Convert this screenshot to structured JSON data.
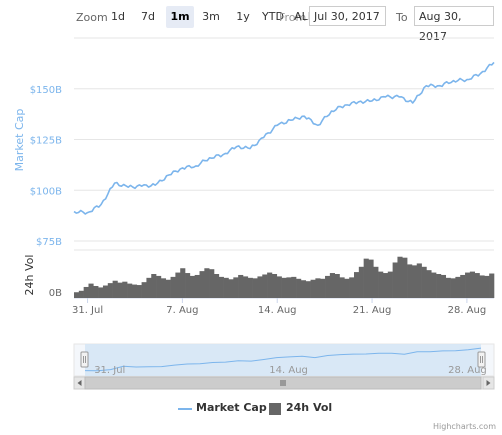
{
  "toolbar": {
    "zoom_label": "Zoom",
    "zoom_buttons": [
      "1d",
      "7d",
      "1m",
      "3m",
      "1y",
      "YTD",
      "ALL"
    ],
    "active_zoom": "1m",
    "from_label": "From",
    "from_value": "Jul 30, 2017",
    "to_label": "To",
    "to_value": "Aug 30, 2017"
  },
  "chart_data": {
    "type": "line",
    "title": "",
    "x_tick_labels": [
      "31. Jul",
      "7. Aug",
      "14. Aug",
      "21. Aug",
      "28. Aug"
    ],
    "navigator_tick_labels": [
      "31. Jul",
      "14. Aug",
      "28. Aug"
    ],
    "y_axis_market_cap": {
      "label": "Market Cap",
      "tick_labels": [
        "$75B",
        "$100B",
        "$125B",
        "$150B"
      ],
      "range": [
        75,
        175
      ]
    },
    "y_axis_volume": {
      "label": "24h Vol",
      "tick_labels": [
        "0B"
      ]
    },
    "legend": [
      "Market Cap",
      "24h Vol"
    ],
    "series": [
      {
        "name": "Market Cap",
        "unit": "billion USD",
        "color": "#7cb5ec",
        "points": [
          [
            "2017-07-30",
            89.5
          ],
          [
            "2017-07-31",
            89.0
          ],
          [
            "2017-08-01",
            93.0
          ],
          [
            "2017-08-02",
            103.5
          ],
          [
            "2017-08-03",
            101.5
          ],
          [
            "2017-08-04",
            102.0
          ],
          [
            "2017-08-05",
            102.5
          ],
          [
            "2017-08-06",
            107.5
          ],
          [
            "2017-08-07",
            111.0
          ],
          [
            "2017-08-08",
            112.0
          ],
          [
            "2017-08-09",
            116.0
          ],
          [
            "2017-08-10",
            117.5
          ],
          [
            "2017-08-11",
            121.5
          ],
          [
            "2017-08-12",
            120.5
          ],
          [
            "2017-08-13",
            126.0
          ],
          [
            "2017-08-14",
            132.0
          ],
          [
            "2017-08-15",
            134.5
          ],
          [
            "2017-08-16",
            136.5
          ],
          [
            "2017-08-17",
            132.0
          ],
          [
            "2017-08-18",
            139.0
          ],
          [
            "2017-08-19",
            142.0
          ],
          [
            "2017-08-20",
            143.5
          ],
          [
            "2017-08-21",
            144.0
          ],
          [
            "2017-08-22",
            146.0
          ],
          [
            "2017-08-23",
            146.0
          ],
          [
            "2017-08-24",
            143.0
          ],
          [
            "2017-08-25",
            151.5
          ],
          [
            "2017-08-26",
            151.5
          ],
          [
            "2017-08-27",
            154.0
          ],
          [
            "2017-08-28",
            154.5
          ],
          [
            "2017-08-29",
            157.5
          ],
          [
            "2017-08-30",
            163.0
          ]
        ]
      },
      {
        "name": "24h Vol",
        "unit": "billion USD",
        "color": "#666666",
        "values": [
          1.2,
          1.5,
          2.3,
          3.0,
          2.5,
          2.2,
          2.6,
          3.1,
          3.6,
          3.2,
          3.4,
          3.0,
          2.8,
          2.7,
          3.3,
          4.2,
          5.0,
          4.6,
          4.1,
          3.8,
          4.4,
          5.3,
          6.2,
          5.2,
          4.6,
          4.8,
          5.6,
          6.2,
          6.0,
          5.0,
          4.4,
          4.2,
          3.9,
          4.3,
          4.8,
          4.5,
          4.2,
          4.1,
          4.5,
          4.9,
          5.3,
          5.0,
          4.5,
          4.2,
          4.3,
          4.4,
          4.0,
          3.7,
          3.5,
          3.8,
          4.1,
          4.0,
          4.6,
          5.2,
          5.0,
          4.3,
          4.0,
          4.3,
          5.4,
          6.5,
          8.2,
          8.0,
          6.5,
          5.5,
          5.2,
          5.5,
          7.4,
          8.6,
          8.4,
          7.0,
          6.8,
          7.2,
          6.5,
          5.8,
          5.3,
          5.0,
          4.8,
          4.2,
          4.1,
          4.4,
          4.8,
          5.3,
          5.5,
          5.2,
          4.7,
          4.6,
          5.1
        ]
      }
    ]
  },
  "legend": {
    "market_cap": "Market Cap",
    "volume": "24h Vol"
  },
  "credits": "Highcharts.com"
}
